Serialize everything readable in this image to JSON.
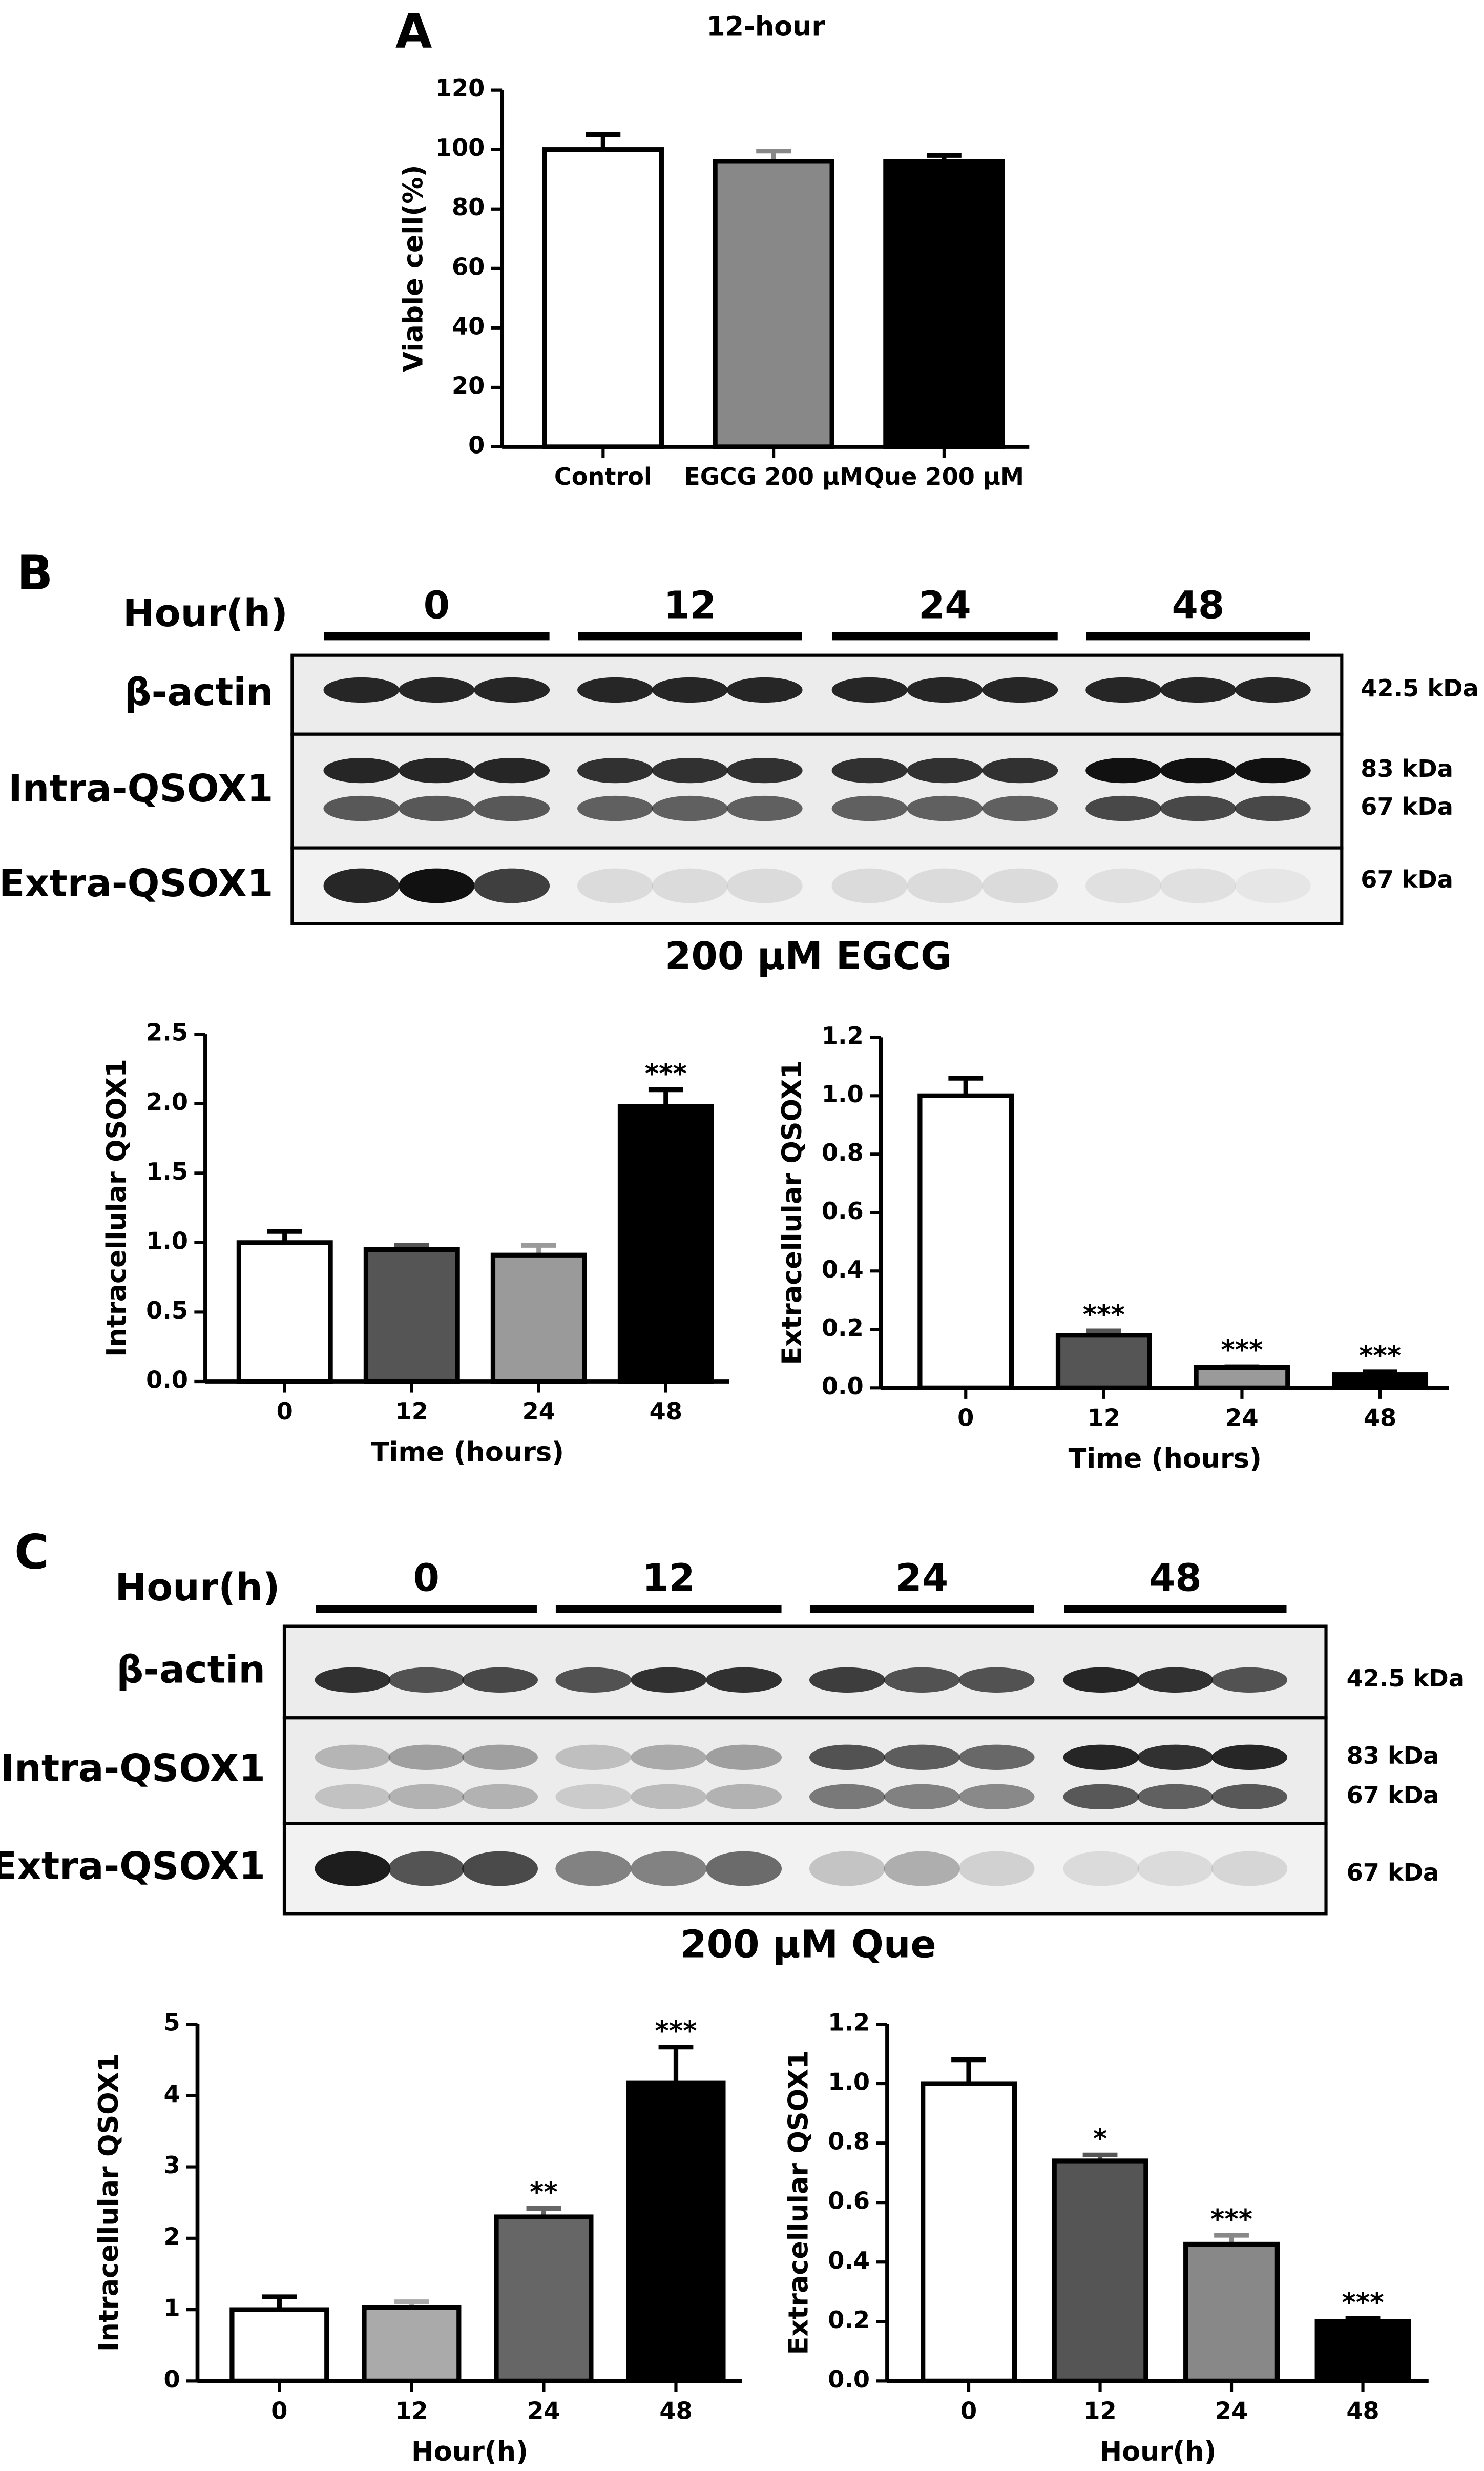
{
  "chart_data": [
    {
      "type": "bar",
      "panel": "A",
      "title": "12-hour",
      "y_label": "Viable cell(%)",
      "categories": [
        "Control",
        "EGCG 200 μM",
        "Que 200 μM"
      ],
      "values": [
        100,
        96,
        96
      ],
      "errors": [
        5,
        3.5,
        2
      ],
      "colors": [
        "#ffffff",
        "#888888",
        "#000000"
      ],
      "ylim": [
        0,
        120
      ],
      "yticks": [
        0,
        20,
        40,
        60,
        80,
        100,
        120
      ]
    },
    {
      "type": "bar",
      "y_label": "Intracellular QSOX1",
      "x_label": "Time (hours)",
      "categories": [
        "0",
        "12",
        "24",
        "48"
      ],
      "values": [
        1.0,
        0.95,
        0.91,
        1.98
      ],
      "errors": [
        0.08,
        0.03,
        0.07,
        0.12
      ],
      "significance": [
        null,
        null,
        null,
        "***"
      ],
      "colors": [
        "#ffffff",
        "#555555",
        "#9a9a9a",
        "#000000"
      ],
      "ylim": [
        0,
        2.5
      ],
      "yticks": [
        {
          "value": 0,
          "label": "0.0"
        },
        0.5,
        {
          "value": 1,
          "label": "1.0"
        },
        1.5,
        {
          "value": 2,
          "label": "2.0"
        },
        2.5
      ]
    },
    {
      "type": "bar",
      "y_label": "Extracellular QSOX1",
      "x_label": "Time (hours)",
      "categories": [
        "0",
        "12",
        "24",
        "48"
      ],
      "values": [
        1.0,
        0.18,
        0.07,
        0.045
      ],
      "errors": [
        0.06,
        0.015,
        0.005,
        0.01
      ],
      "significance": [
        null,
        "***",
        "***",
        "***"
      ],
      "colors": [
        "#ffffff",
        "#555555",
        "#9a9a9a",
        "#000000"
      ],
      "ylim": [
        0,
        1.2
      ],
      "yticks": [
        {
          "value": 0,
          "label": "0.0"
        },
        0.2,
        0.4,
        0.6,
        0.8,
        {
          "value": 1,
          "label": "1.0"
        },
        1.2
      ]
    },
    {
      "type": "bar",
      "y_label": "Intracellular QSOX1",
      "x_label": "Hour(h)",
      "categories": [
        "0",
        "12",
        "24",
        "48"
      ],
      "values": [
        1.0,
        1.03,
        2.3,
        4.18
      ],
      "errors": [
        0.18,
        0.08,
        0.12,
        0.5
      ],
      "significance": [
        null,
        null,
        "**",
        "***"
      ],
      "colors": [
        "#ffffff",
        "#aaaaaa",
        "#666666",
        "#000000"
      ],
      "ylim": [
        0,
        5
      ],
      "yticks": [
        0,
        1,
        2,
        3,
        4,
        5
      ]
    },
    {
      "type": "bar",
      "y_label": "Extracellular QSOX1",
      "x_label": "Hour(h)",
      "categories": [
        "0",
        "12",
        "24",
        "48"
      ],
      "values": [
        1.0,
        0.74,
        0.46,
        0.2
      ],
      "errors": [
        0.08,
        0.02,
        0.03,
        0.01
      ],
      "significance": [
        null,
        "*",
        "***",
        "***"
      ],
      "colors": [
        "#ffffff",
        "#555555",
        "#888888",
        "#000000"
      ],
      "ylim": [
        0,
        1.2
      ],
      "yticks": [
        {
          "value": 0,
          "label": "0.0"
        },
        0.2,
        0.4,
        0.6,
        0.8,
        {
          "value": 1,
          "label": "1.0"
        },
        1.2
      ]
    }
  ],
  "blots": [
    {
      "panel": "B",
      "hour_label": "Hour(h)",
      "groups": [
        "0",
        "12",
        "24",
        "48"
      ],
      "rows": [
        {
          "name": "β-actin",
          "kda": [
            "42.5 kDa"
          ]
        },
        {
          "name": "Intra-QSOX1",
          "kda": [
            "83 kDa",
            "67 kDa"
          ]
        },
        {
          "name": "Extra-QSOX1",
          "kda": [
            "67 kDa"
          ]
        }
      ],
      "caption": "200 μM EGCG"
    },
    {
      "panel": "C",
      "hour_label": "Hour(h)",
      "groups": [
        "0",
        "12",
        "24",
        "48"
      ],
      "rows": [
        {
          "name": "β-actin",
          "kda": [
            "42.5 kDa"
          ]
        },
        {
          "name": "Intra-QSOX1",
          "kda": [
            "83 kDa",
            "67 kDa"
          ]
        },
        {
          "name": "Extra-QSOX1",
          "kda": [
            "67 kDa"
          ]
        }
      ],
      "caption": "200 μM Que"
    }
  ]
}
